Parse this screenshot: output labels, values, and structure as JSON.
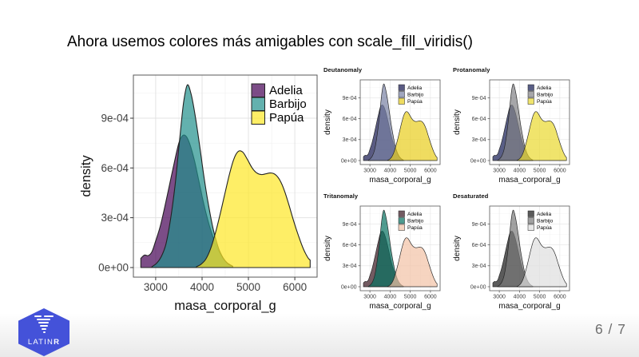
{
  "slide": {
    "title": "Ahora usemos colores más amigables con scale_fill_viridis()",
    "page_number": "6 / 7",
    "logo": {
      "latin": "LATIN",
      "r": "R",
      "hex_color": "#4452D9"
    },
    "background": "#FFFFFF",
    "footer_fade_color": "#E9E9E9"
  },
  "chart_data": {
    "type": "area",
    "subtype": "overlapping-density-curves",
    "xlabel": "masa_corporal_g",
    "ylabel": "density",
    "x_ticks": [
      3000,
      4000,
      5000,
      6000
    ],
    "y_ticks": [
      {
        "value_e4": 0,
        "label": "0e+00"
      },
      {
        "value_e4": 3,
        "label": "3e-04"
      },
      {
        "value_e4": 6,
        "label": "6e-04"
      },
      {
        "value_e4": 9,
        "label": "9e-04"
      }
    ],
    "x_minor_ticks": [
      3500,
      4500,
      5500
    ],
    "y_minor_ticks_e4": [
      1.5,
      4.5,
      7.5,
      10.5
    ],
    "xlim": [
      2520,
      6480
    ],
    "ylim_e4": [
      -0.58,
      11.6
    ],
    "grid": true,
    "fill_opacity": 0.7,
    "legend_position": "top-right-inside",
    "legend_labels": [
      "Adelia",
      "Barbijo",
      "Papúa"
    ],
    "series": [
      {
        "name": "Adelia",
        "x": [
          2680,
          2760,
          2840,
          2920,
          3000,
          3100,
          3200,
          3300,
          3400,
          3500,
          3580,
          3660,
          3740,
          3840,
          3940,
          4040,
          4140,
          4240,
          4340,
          4440,
          4540,
          4660
        ],
        "y_e4": [
          0.55,
          0.75,
          0.72,
          0.95,
          1.6,
          2.5,
          3.7,
          5.0,
          6.3,
          7.5,
          7.95,
          7.9,
          7.4,
          6.4,
          5.1,
          3.8,
          2.7,
          1.8,
          1.1,
          0.6,
          0.28,
          0.08
        ]
      },
      {
        "name": "Barbijo",
        "x": [
          2920,
          3020,
          3120,
          3220,
          3320,
          3420,
          3520,
          3600,
          3680,
          3760,
          3850,
          3950,
          4050,
          4150,
          4250,
          4350,
          4450,
          4550,
          4660
        ],
        "y_e4": [
          0.05,
          0.25,
          0.65,
          1.4,
          2.9,
          5.0,
          7.8,
          9.9,
          11.0,
          10.5,
          9.2,
          7.3,
          5.3,
          3.6,
          2.2,
          1.2,
          0.6,
          0.25,
          0.07
        ]
      },
      {
        "name": "Papúa",
        "x": [
          3880,
          3980,
          4080,
          4180,
          4280,
          4380,
          4480,
          4580,
          4680,
          4780,
          4880,
          4980,
          5080,
          5180,
          5280,
          5380,
          5480,
          5580,
          5680,
          5780,
          5880,
          5980,
          6080,
          6180,
          6280,
          6330
        ],
        "y_e4": [
          0.05,
          0.2,
          0.5,
          1.1,
          2.0,
          3.1,
          4.3,
          5.5,
          6.5,
          7.0,
          6.95,
          6.5,
          6.0,
          5.7,
          5.6,
          5.65,
          5.7,
          5.6,
          5.25,
          4.6,
          3.7,
          2.75,
          1.9,
          1.15,
          0.6,
          0.45
        ]
      }
    ],
    "plots": [
      {
        "id": "main",
        "title": "",
        "colors": [
          "#440154",
          "#21908C",
          "#FDE725"
        ]
      },
      {
        "id": "deutanomaly",
        "title": "Deutanomaly",
        "colors": [
          "#14164E",
          "#7780A2",
          "#E8CD1D"
        ]
      },
      {
        "id": "protanomaly",
        "title": "Protanomaly",
        "colors": [
          "#121A52",
          "#808085",
          "#E9D82E"
        ]
      },
      {
        "id": "tritanomaly",
        "title": "Tritanomaly",
        "colors": [
          "#381520",
          "#067060",
          "#F2C2A5"
        ]
      },
      {
        "id": "desaturated",
        "title": "Desaturated",
        "colors": [
          "#151515",
          "#797979",
          "#DEDEDE"
        ]
      }
    ]
  }
}
